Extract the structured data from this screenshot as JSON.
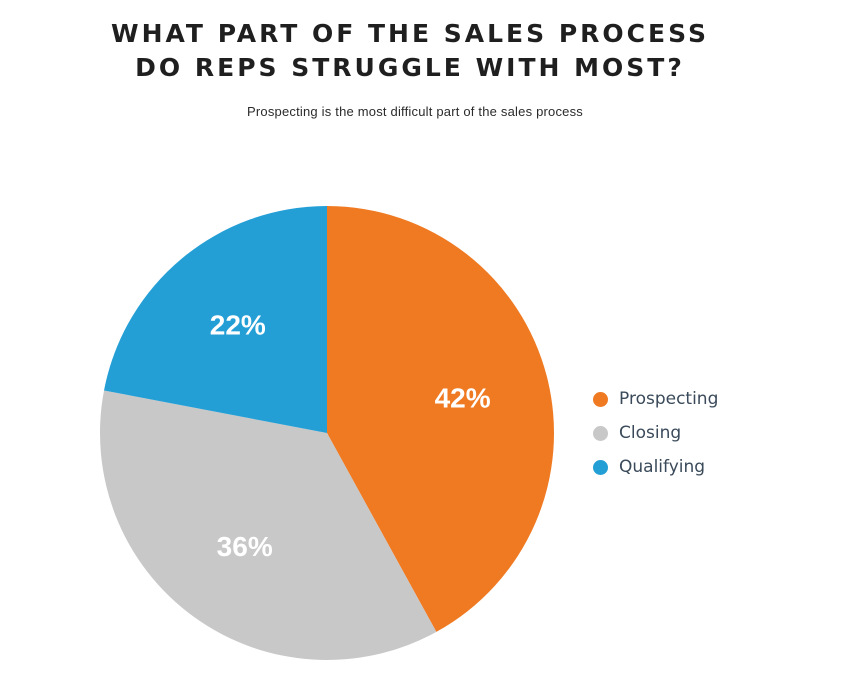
{
  "header": {
    "title_line_1": "WHAT PART OF THE SALES PROCESS",
    "title_line_2": "DO REPS STRUGGLE WITH MOST?",
    "subtitle": "Prospecting is the most difficult part of the sales process"
  },
  "colors": {
    "prospecting": "#F07A22",
    "closing": "#C8C8C8",
    "qualifying": "#249FD6"
  },
  "chart_data": {
    "type": "pie",
    "title": "WHAT PART OF THE SALES PROCESS DO REPS STRUGGLE WITH MOST?",
    "subtitle": "Prospecting is the most difficult part of the sales process",
    "categories": [
      "Prospecting",
      "Closing",
      "Qualifying"
    ],
    "values": [
      42,
      36,
      22
    ],
    "value_labels": [
      "42%",
      "36%",
      "22%"
    ],
    "unit": "%",
    "start": "12 o'clock",
    "direction": "clockwise",
    "legend": "right"
  },
  "legend": {
    "items": [
      {
        "label": "Prospecting",
        "color": "#F07A22"
      },
      {
        "label": "Closing",
        "color": "#C8C8C8"
      },
      {
        "label": "Qualifying",
        "color": "#249FD6"
      }
    ]
  }
}
